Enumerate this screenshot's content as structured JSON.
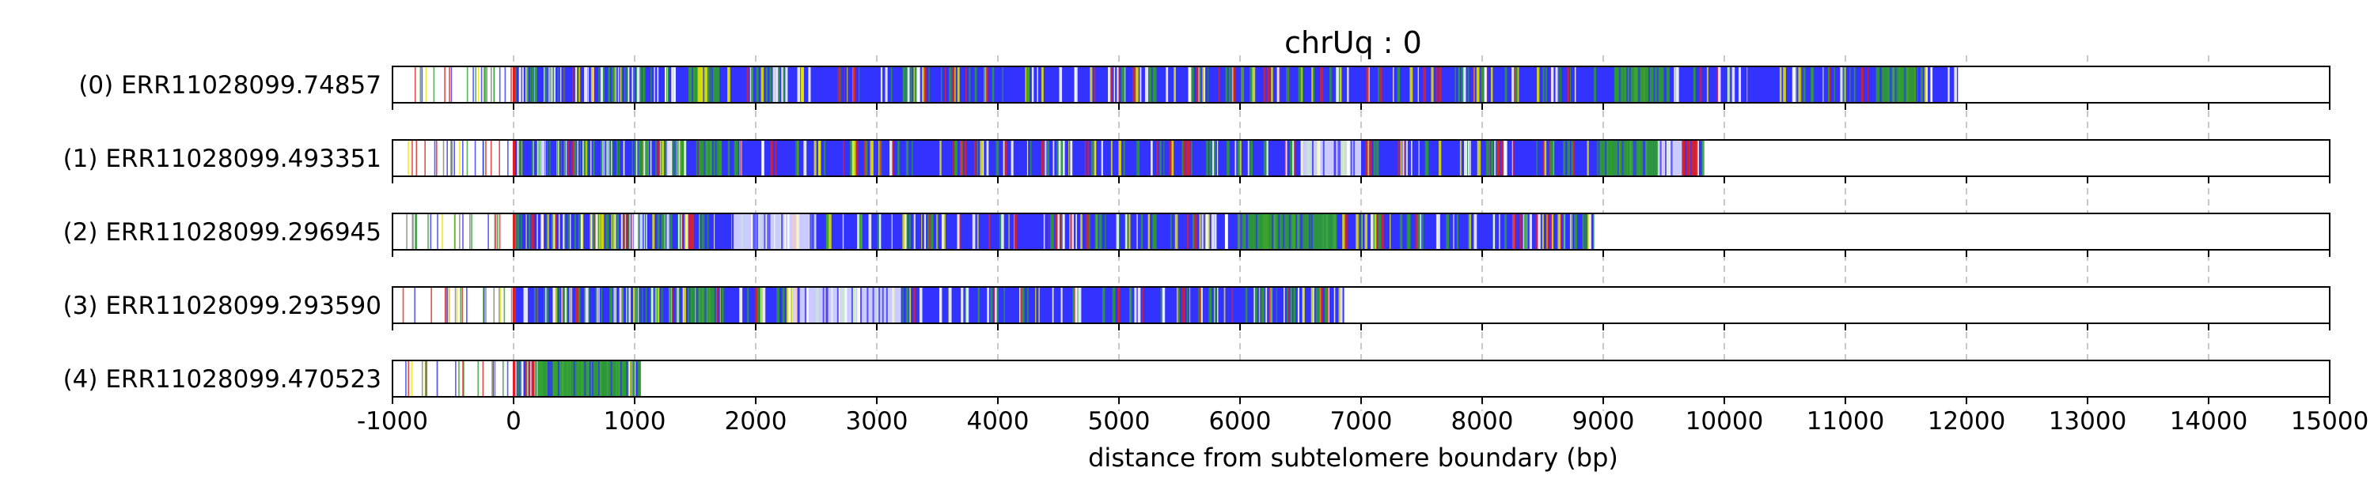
{
  "chart_data": {
    "type": "heatmap",
    "title": "chrUq : 0",
    "xlabel": "distance from subtelomere boundary (bp)",
    "ylabel": "",
    "xlim": [
      -1000,
      15000
    ],
    "xticks": [
      -1000,
      0,
      1000,
      2000,
      3000,
      4000,
      5000,
      6000,
      7000,
      8000,
      9000,
      10000,
      11000,
      12000,
      13000,
      14000,
      15000
    ],
    "grid": "x-axis dashed vertical lines",
    "colors": {
      "blue": "#3333ff",
      "green": "#2ca02c",
      "yellow": "#e6e600",
      "red": "#e02020",
      "white": "#ffffff",
      "grey": "#808080"
    },
    "reads": [
      {
        "label": "(0) ERR11028099.74857",
        "read_start": -1000,
        "dense_start": 0,
        "read_end": 11930,
        "segments": [
          {
            "start": 1450,
            "end": 1700,
            "color": "green"
          },
          {
            "start": 1520,
            "end": 1600,
            "color": "yellow"
          },
          {
            "start": 9100,
            "end": 9500,
            "color": "green"
          },
          {
            "start": 11300,
            "end": 11600,
            "color": "green"
          }
        ]
      },
      {
        "label": "(1) ERR11028099.493351",
        "read_start": -1000,
        "dense_start": 0,
        "read_end": 9820,
        "segments": [
          {
            "start": 1530,
            "end": 1720,
            "color": "green"
          },
          {
            "start": 6500,
            "end": 7000,
            "color": "white"
          },
          {
            "start": 8950,
            "end": 9450,
            "color": "green"
          },
          {
            "start": 9450,
            "end": 9650,
            "color": "white"
          },
          {
            "start": 9650,
            "end": 9780,
            "color": "red"
          }
        ]
      },
      {
        "label": "(2) ERR11028099.296945",
        "read_start": -1000,
        "dense_start": 0,
        "read_end": 8920,
        "segments": [
          {
            "start": 1800,
            "end": 2500,
            "color": "white"
          },
          {
            "start": 6000,
            "end": 6800,
            "color": "green"
          }
        ]
      },
      {
        "label": "(3) ERR11028099.293590",
        "read_start": -1000,
        "dense_start": 0,
        "read_end": 6860,
        "segments": [
          {
            "start": 1500,
            "end": 1680,
            "color": "green"
          },
          {
            "start": 2300,
            "end": 3200,
            "color": "white"
          }
        ]
      },
      {
        "label": "(4) ERR11028099.470523",
        "read_start": -1000,
        "dense_start": 0,
        "read_end": 1050,
        "segments": [
          {
            "start": 200,
            "end": 950,
            "color": "green"
          }
        ]
      }
    ]
  }
}
